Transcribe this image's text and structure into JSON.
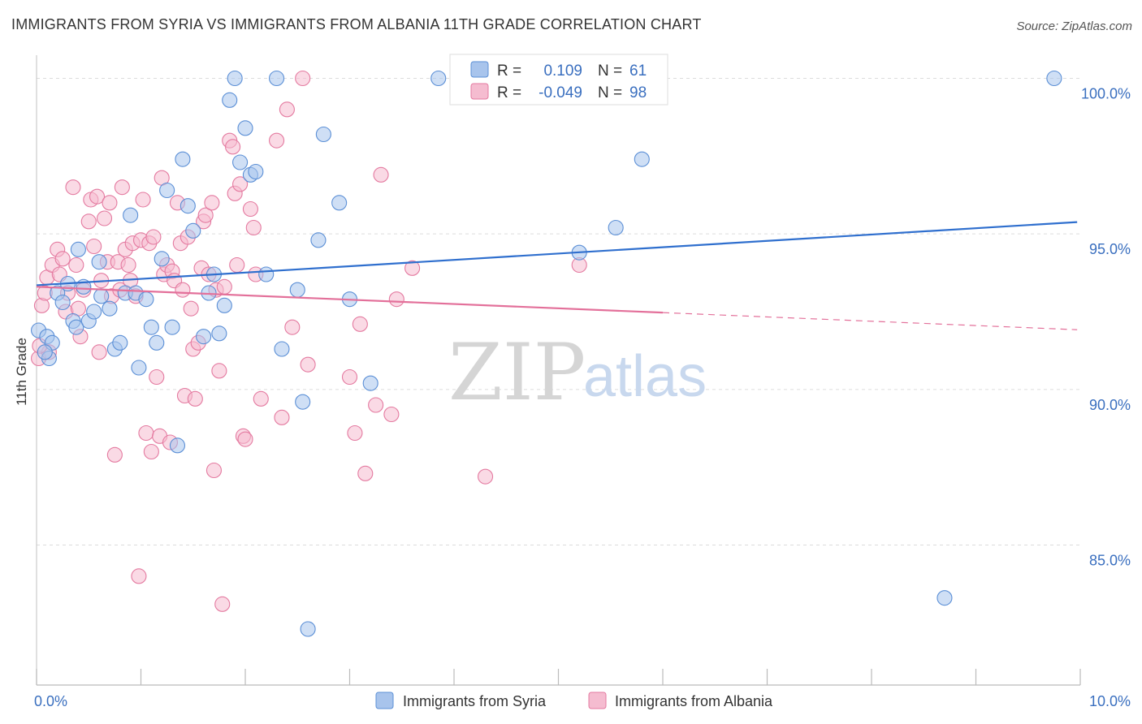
{
  "title": "IMMIGRANTS FROM SYRIA VS IMMIGRANTS FROM ALBANIA 11TH GRADE CORRELATION CHART",
  "source": "Source: ZipAtlas.com",
  "watermark": {
    "part1": "ZIP",
    "part2": "atlas"
  },
  "legend": {
    "rows": [
      {
        "r_label": "R =",
        "r_value": "0.109",
        "n_label": "N =",
        "n_value": "61",
        "color": "#a8c4ec",
        "stroke": "#5b8fd6"
      },
      {
        "r_label": "R =",
        "r_value": "-0.049",
        "n_label": "N =",
        "n_value": "98",
        "color": "#f5bcd0",
        "stroke": "#e47aa0"
      }
    ]
  },
  "chart_data": {
    "type": "scatter",
    "xlabel": "",
    "ylabel": "11th Grade",
    "xlim": [
      0,
      10
    ],
    "ylim": [
      80.5,
      100.9
    ],
    "x_tick_labels": [
      "0.0%",
      "10.0%"
    ],
    "y_ticks": [
      85,
      90,
      95,
      100
    ],
    "y_tick_labels": [
      "85.0%",
      "90.0%",
      "95.0%",
      "100.0%"
    ],
    "grid": true,
    "series": [
      {
        "name": "Immigrants from Syria",
        "color": "#a8c4ec",
        "stroke": "#5b8fd6",
        "line_color": "#2f6fce",
        "trend": {
          "x0": 0.0,
          "y0": 93.35,
          "x1": 9.97,
          "y1": 95.38
        },
        "points": [
          [
            0.02,
            91.9
          ],
          [
            0.1,
            91.7
          ],
          [
            0.15,
            91.5
          ],
          [
            0.12,
            91.0
          ],
          [
            0.2,
            93.1
          ],
          [
            0.25,
            92.8
          ],
          [
            0.3,
            93.4
          ],
          [
            0.35,
            92.2
          ],
          [
            0.38,
            92.0
          ],
          [
            0.4,
            94.5
          ],
          [
            0.45,
            93.3
          ],
          [
            0.5,
            92.2
          ],
          [
            0.55,
            92.5
          ],
          [
            0.6,
            94.1
          ],
          [
            0.62,
            93.0
          ],
          [
            0.7,
            92.6
          ],
          [
            0.75,
            91.3
          ],
          [
            0.8,
            91.5
          ],
          [
            0.85,
            93.1
          ],
          [
            0.9,
            95.6
          ],
          [
            0.95,
            93.1
          ],
          [
            0.98,
            90.7
          ],
          [
            1.05,
            92.9
          ],
          [
            1.1,
            92.0
          ],
          [
            1.15,
            91.5
          ],
          [
            1.2,
            94.2
          ],
          [
            1.25,
            96.4
          ],
          [
            1.3,
            92.0
          ],
          [
            1.35,
            88.2
          ],
          [
            1.4,
            97.4
          ],
          [
            1.45,
            95.9
          ],
          [
            1.5,
            95.1
          ],
          [
            1.6,
            91.7
          ],
          [
            1.65,
            93.1
          ],
          [
            1.7,
            93.7
          ],
          [
            1.75,
            91.8
          ],
          [
            1.8,
            92.7
          ],
          [
            1.85,
            99.3
          ],
          [
            1.9,
            100.0
          ],
          [
            1.95,
            97.3
          ],
          [
            2.0,
            98.4
          ],
          [
            2.05,
            96.9
          ],
          [
            2.1,
            97.0
          ],
          [
            2.2,
            93.7
          ],
          [
            2.3,
            100.0
          ],
          [
            2.35,
            91.3
          ],
          [
            2.5,
            93.2
          ],
          [
            2.55,
            89.6
          ],
          [
            2.6,
            82.3
          ],
          [
            2.7,
            94.8
          ],
          [
            2.75,
            98.2
          ],
          [
            2.9,
            96.0
          ],
          [
            3.0,
            92.9
          ],
          [
            3.2,
            90.2
          ],
          [
            3.85,
            100.0
          ],
          [
            5.2,
            94.4
          ],
          [
            5.55,
            95.2
          ],
          [
            5.8,
            97.4
          ],
          [
            8.7,
            83.3
          ],
          [
            9.75,
            100.0
          ],
          [
            0.08,
            91.2
          ]
        ]
      },
      {
        "name": "Immigrants from Albania",
        "color": "#f5bcd0",
        "stroke": "#e47aa0",
        "line_color": "#e3709a",
        "trend": {
          "x0": 0.0,
          "y0": 93.3,
          "x1": 6.0,
          "y1": 92.47
        },
        "trend_dashed": {
          "x0": 6.0,
          "y0": 92.47,
          "x1": 9.97,
          "y1": 91.92
        },
        "points": [
          [
            0.02,
            91.0
          ],
          [
            0.05,
            92.7
          ],
          [
            0.08,
            93.1
          ],
          [
            0.1,
            93.6
          ],
          [
            0.12,
            91.2
          ],
          [
            0.15,
            94.0
          ],
          [
            0.2,
            94.5
          ],
          [
            0.22,
            93.7
          ],
          [
            0.25,
            94.2
          ],
          [
            0.28,
            92.5
          ],
          [
            0.3,
            93.1
          ],
          [
            0.35,
            96.5
          ],
          [
            0.38,
            94.0
          ],
          [
            0.4,
            92.6
          ],
          [
            0.42,
            91.7
          ],
          [
            0.45,
            93.2
          ],
          [
            0.5,
            95.4
          ],
          [
            0.52,
            96.1
          ],
          [
            0.55,
            94.6
          ],
          [
            0.58,
            96.2
          ],
          [
            0.6,
            91.2
          ],
          [
            0.62,
            93.5
          ],
          [
            0.65,
            95.5
          ],
          [
            0.68,
            94.1
          ],
          [
            0.7,
            96.0
          ],
          [
            0.72,
            93.0
          ],
          [
            0.75,
            87.9
          ],
          [
            0.78,
            94.1
          ],
          [
            0.8,
            93.2
          ],
          [
            0.82,
            96.5
          ],
          [
            0.85,
            94.5
          ],
          [
            0.88,
            94.0
          ],
          [
            0.9,
            93.5
          ],
          [
            0.92,
            94.7
          ],
          [
            0.95,
            93.0
          ],
          [
            0.98,
            84.0
          ],
          [
            1.0,
            94.8
          ],
          [
            1.02,
            96.1
          ],
          [
            1.05,
            88.6
          ],
          [
            1.08,
            94.7
          ],
          [
            1.1,
            88.0
          ],
          [
            1.12,
            94.9
          ],
          [
            1.15,
            90.4
          ],
          [
            1.18,
            88.5
          ],
          [
            1.2,
            96.8
          ],
          [
            1.22,
            93.7
          ],
          [
            1.25,
            94.0
          ],
          [
            1.28,
            88.3
          ],
          [
            1.3,
            93.8
          ],
          [
            1.32,
            93.5
          ],
          [
            1.35,
            96.0
          ],
          [
            1.38,
            94.7
          ],
          [
            1.4,
            93.2
          ],
          [
            1.42,
            89.8
          ],
          [
            1.45,
            94.9
          ],
          [
            1.48,
            92.6
          ],
          [
            1.5,
            91.3
          ],
          [
            1.52,
            89.7
          ],
          [
            1.55,
            91.5
          ],
          [
            1.58,
            93.9
          ],
          [
            1.6,
            95.4
          ],
          [
            1.62,
            95.6
          ],
          [
            1.65,
            93.7
          ],
          [
            1.68,
            96.0
          ],
          [
            1.7,
            87.4
          ],
          [
            1.72,
            93.2
          ],
          [
            1.75,
            90.6
          ],
          [
            1.78,
            83.1
          ],
          [
            1.8,
            93.3
          ],
          [
            1.85,
            98.0
          ],
          [
            1.88,
            97.8
          ],
          [
            1.9,
            96.3
          ],
          [
            1.92,
            94.0
          ],
          [
            1.95,
            96.6
          ],
          [
            1.98,
            88.5
          ],
          [
            2.0,
            88.4
          ],
          [
            2.05,
            95.8
          ],
          [
            2.08,
            95.2
          ],
          [
            2.1,
            93.7
          ],
          [
            2.15,
            89.7
          ],
          [
            2.3,
            98.0
          ],
          [
            2.35,
            89.1
          ],
          [
            2.4,
            99.0
          ],
          [
            2.45,
            92.0
          ],
          [
            2.55,
            100.0
          ],
          [
            2.6,
            90.8
          ],
          [
            3.0,
            90.4
          ],
          [
            3.05,
            88.6
          ],
          [
            3.1,
            92.1
          ],
          [
            3.15,
            87.3
          ],
          [
            3.25,
            89.5
          ],
          [
            3.3,
            96.9
          ],
          [
            3.4,
            89.2
          ],
          [
            3.6,
            93.9
          ],
          [
            4.3,
            87.2
          ],
          [
            5.2,
            94.0
          ],
          [
            3.45,
            92.9
          ],
          [
            0.03,
            91.4
          ]
        ]
      }
    ]
  },
  "bottom_legend": [
    {
      "label": "Immigrants from Syria",
      "color": "#a8c4ec",
      "stroke": "#5b8fd6"
    },
    {
      "label": "Immigrants from Albania",
      "color": "#f5bcd0",
      "stroke": "#e47aa0"
    }
  ]
}
